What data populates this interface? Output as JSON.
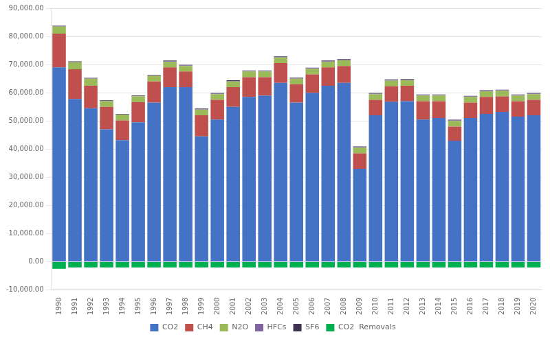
{
  "chart_data": {
    "type": "bar",
    "categories": [
      "1990",
      "1991",
      "1992",
      "1993",
      "1994",
      "1995",
      "1996",
      "1997",
      "1998",
      "1999",
      "2000",
      "2001",
      "2002",
      "2003",
      "2004",
      "2005",
      "2006",
      "2007",
      "2008",
      "2009",
      "2010",
      "2011",
      "2012",
      "2013",
      "2014",
      "2015",
      "2016",
      "2017",
      "2018",
      "2019",
      "2020"
    ],
    "series": [
      {
        "name": "CO2",
        "color": "#4472C4",
        "values": [
          69000,
          57800,
          54500,
          47000,
          43200,
          49500,
          56500,
          62000,
          62000,
          44500,
          50500,
          55000,
          58500,
          59000,
          63500,
          56500,
          60000,
          62500,
          63500,
          33000,
          52000,
          56800,
          57000,
          50500,
          51000,
          43000,
          51000,
          52500,
          53200,
          51500,
          52000
        ]
      },
      {
        "name": "CH4",
        "color": "#C0504D",
        "values": [
          12000,
          10500,
          8000,
          8000,
          7000,
          7200,
          7500,
          7000,
          5500,
          7500,
          7000,
          7000,
          7000,
          6500,
          7000,
          6500,
          6500,
          6500,
          6000,
          5500,
          5500,
          5500,
          5500,
          6500,
          6000,
          5000,
          5500,
          6000,
          5500,
          5500,
          5500
        ]
      },
      {
        "name": "N2O",
        "color": "#9BBB59",
        "values": [
          2500,
          2500,
          2500,
          2000,
          2000,
          2000,
          2000,
          2000,
          2000,
          2000,
          2000,
          2000,
          2000,
          2000,
          2000,
          2000,
          2000,
          2000,
          2000,
          2000,
          2000,
          2000,
          2000,
          2000,
          2000,
          2000,
          2000,
          2000,
          2000,
          2000,
          2000
        ]
      },
      {
        "name": "HFCs",
        "color": "#8064A2",
        "values": [
          100,
          100,
          100,
          100,
          100,
          100,
          200,
          200,
          200,
          200,
          200,
          200,
          200,
          200,
          200,
          200,
          200,
          200,
          200,
          200,
          200,
          200,
          200,
          200,
          200,
          200,
          200,
          200,
          200,
          200,
          200
        ]
      },
      {
        "name": "SF6",
        "color": "#403152",
        "values": [
          200,
          200,
          200,
          200,
          200,
          200,
          200,
          200,
          200,
          200,
          200,
          200,
          200,
          200,
          200,
          200,
          200,
          200,
          200,
          200,
          200,
          200,
          200,
          200,
          200,
          200,
          200,
          200,
          200,
          200,
          200
        ]
      },
      {
        "name": "CO2  Removals",
        "color": "#00B050",
        "values": [
          -2500,
          -2000,
          -2000,
          -2000,
          -2000,
          -2000,
          -2000,
          -2000,
          -2000,
          -2000,
          -2000,
          -2000,
          -2000,
          -2000,
          -2000,
          -2000,
          -2000,
          -2000,
          -2000,
          -2000,
          -2000,
          -2000,
          -2000,
          -2000,
          -2000,
          -2000,
          -2000,
          -2000,
          -2000,
          -2000,
          -2000
        ]
      }
    ],
    "ylim": [
      -10000,
      90000
    ],
    "yticks": [
      {
        "value": -10000,
        "label": "-10,000.00"
      },
      {
        "value": 0,
        "label": "0.00"
      },
      {
        "value": 10000,
        "label": "10,000.00"
      },
      {
        "value": 20000,
        "label": "20,000.00"
      },
      {
        "value": 30000,
        "label": "30,000.00"
      },
      {
        "value": 40000,
        "label": "40,000.00"
      },
      {
        "value": 50000,
        "label": "50,000.00"
      },
      {
        "value": 60000,
        "label": "60,000.00"
      },
      {
        "value": 70000,
        "label": "70,000.00"
      },
      {
        "value": 80000,
        "label": "80,000.00"
      },
      {
        "value": 90000,
        "label": "90,000.00"
      }
    ],
    "grid": true,
    "stacked": true,
    "legend": "bottom"
  }
}
